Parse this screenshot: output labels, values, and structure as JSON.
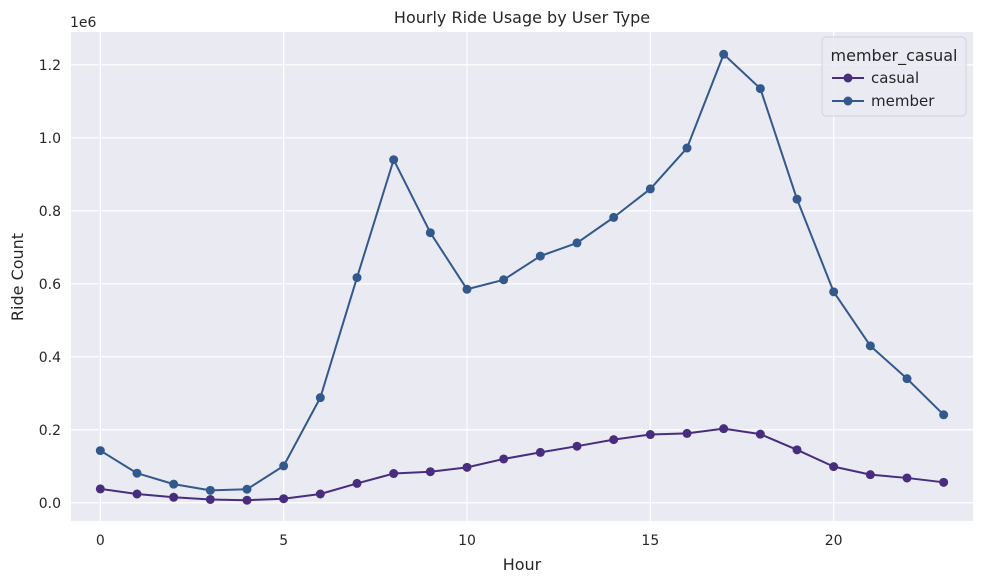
{
  "chart_data": {
    "type": "line",
    "title": "Hourly Ride Usage by User Type",
    "xlabel": "Hour",
    "ylabel": "Ride Count",
    "y_offset_label": "1e6",
    "xlim": [
      -0.8,
      23.8
    ],
    "ylim": [
      -0.05,
      1.29
    ],
    "x_ticks": [
      0,
      5,
      10,
      15,
      20
    ],
    "x_tick_labels": [
      "0",
      "5",
      "10",
      "15",
      "20"
    ],
    "y_ticks": [
      0.0,
      0.2,
      0.4,
      0.6,
      0.8,
      1.0,
      1.2
    ],
    "y_tick_labels": [
      "0.0",
      "0.2",
      "0.4",
      "0.6",
      "0.8",
      "1.0",
      "1.2"
    ],
    "grid": true,
    "legend": {
      "title": "member_casual",
      "position": "top-right"
    },
    "x": [
      0,
      1,
      2,
      3,
      4,
      5,
      6,
      7,
      8,
      9,
      10,
      11,
      12,
      13,
      14,
      15,
      16,
      17,
      18,
      19,
      20,
      21,
      22,
      23
    ],
    "series": [
      {
        "name": "casual",
        "color": "#482d7e",
        "values": [
          0.038,
          0.024,
          0.015,
          0.009,
          0.007,
          0.011,
          0.024,
          0.053,
          0.08,
          0.085,
          0.097,
          0.12,
          0.138,
          0.155,
          0.173,
          0.187,
          0.19,
          0.203,
          0.188,
          0.145,
          0.099,
          0.077,
          0.068,
          0.056
        ]
      },
      {
        "name": "member",
        "color": "#33598c",
        "values": [
          0.143,
          0.081,
          0.051,
          0.034,
          0.037,
          0.101,
          0.288,
          0.617,
          0.94,
          0.74,
          0.585,
          0.611,
          0.676,
          0.712,
          0.782,
          0.86,
          0.972,
          1.229,
          1.135,
          0.832,
          0.578,
          0.43,
          0.34,
          0.241
        ]
      }
    ]
  }
}
